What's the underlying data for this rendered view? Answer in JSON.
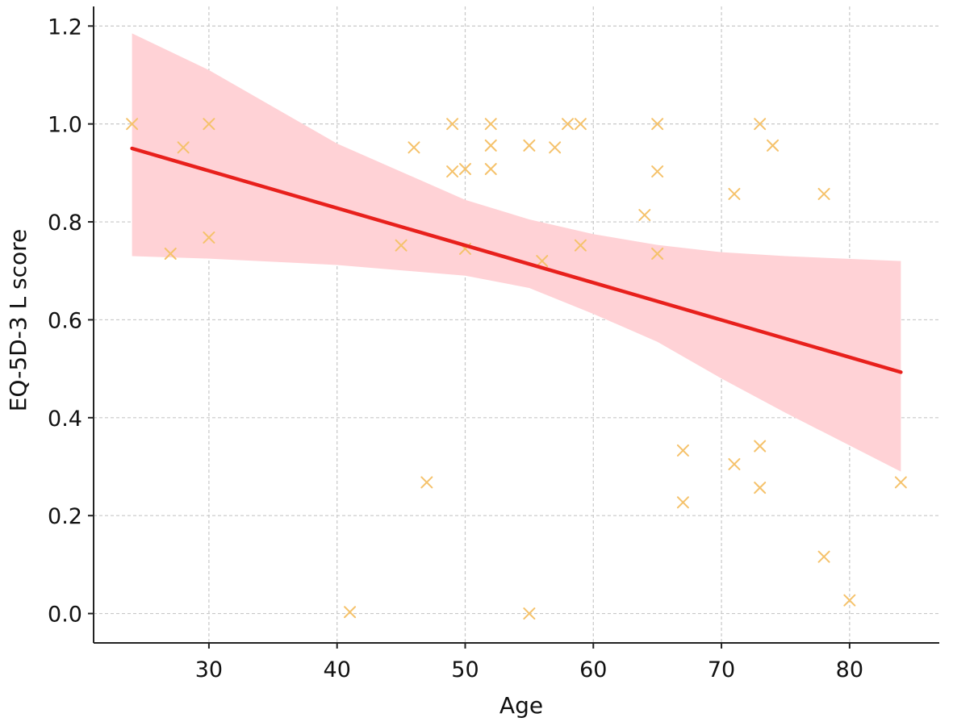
{
  "chart_data": {
    "type": "scatter",
    "title": "",
    "xlabel": "Age",
    "ylabel": "EQ-5D-3 L score",
    "xlim": [
      21,
      87
    ],
    "ylim": [
      -0.06,
      1.24
    ],
    "xticks": [
      30,
      40,
      50,
      60,
      70,
      80
    ],
    "yticks": [
      0.0,
      0.2,
      0.4,
      0.6,
      0.8,
      1.0,
      1.2
    ],
    "ytick_labels": [
      "0.0",
      "0.2",
      "0.4",
      "0.6",
      "0.8",
      "1.0",
      "1.2"
    ],
    "grid": true,
    "colors": {
      "points": "#f5c26b",
      "line": "#e8201c",
      "band": "#ffd2d6",
      "grid": "#c8c8c8",
      "axis": "#222222"
    },
    "points": [
      {
        "x": 24,
        "y": 1.0
      },
      {
        "x": 27,
        "y": 0.735
      },
      {
        "x": 28,
        "y": 0.952
      },
      {
        "x": 30,
        "y": 1.0
      },
      {
        "x": 30,
        "y": 0.768
      },
      {
        "x": 41,
        "y": 0.003
      },
      {
        "x": 45,
        "y": 0.752
      },
      {
        "x": 46,
        "y": 0.952
      },
      {
        "x": 47,
        "y": 0.268
      },
      {
        "x": 49,
        "y": 1.0
      },
      {
        "x": 49,
        "y": 0.903
      },
      {
        "x": 50,
        "y": 0.908
      },
      {
        "x": 50,
        "y": 0.745
      },
      {
        "x": 52,
        "y": 1.0
      },
      {
        "x": 52,
        "y": 0.956
      },
      {
        "x": 52,
        "y": 0.908
      },
      {
        "x": 55,
        "y": 0.956
      },
      {
        "x": 55,
        "y": 0.0
      },
      {
        "x": 56,
        "y": 0.72
      },
      {
        "x": 57,
        "y": 0.952
      },
      {
        "x": 58,
        "y": 1.0
      },
      {
        "x": 59,
        "y": 1.0
      },
      {
        "x": 59,
        "y": 0.752
      },
      {
        "x": 64,
        "y": 0.814
      },
      {
        "x": 65,
        "y": 1.0
      },
      {
        "x": 65,
        "y": 0.903
      },
      {
        "x": 65,
        "y": 0.735
      },
      {
        "x": 67,
        "y": 0.333
      },
      {
        "x": 67,
        "y": 0.227
      },
      {
        "x": 71,
        "y": 0.857
      },
      {
        "x": 71,
        "y": 0.305
      },
      {
        "x": 73,
        "y": 1.0
      },
      {
        "x": 73,
        "y": 0.342
      },
      {
        "x": 73,
        "y": 0.257
      },
      {
        "x": 74,
        "y": 0.956
      },
      {
        "x": 78,
        "y": 0.857
      },
      {
        "x": 78,
        "y": 0.116
      },
      {
        "x": 80,
        "y": 0.027
      },
      {
        "x": 84,
        "y": 0.268
      }
    ],
    "regression_line": [
      {
        "x": 24,
        "y": 0.95
      },
      {
        "x": 84,
        "y": 0.493
      }
    ],
    "confidence_band": {
      "x": [
        24,
        30,
        40,
        50,
        55,
        60,
        65,
        70,
        75,
        84
      ],
      "upper": [
        1.185,
        1.11,
        0.96,
        0.845,
        0.805,
        0.775,
        0.753,
        0.738,
        0.73,
        0.72
      ],
      "lower": [
        0.73,
        0.725,
        0.712,
        0.69,
        0.665,
        0.612,
        0.555,
        0.48,
        0.41,
        0.29
      ]
    }
  }
}
